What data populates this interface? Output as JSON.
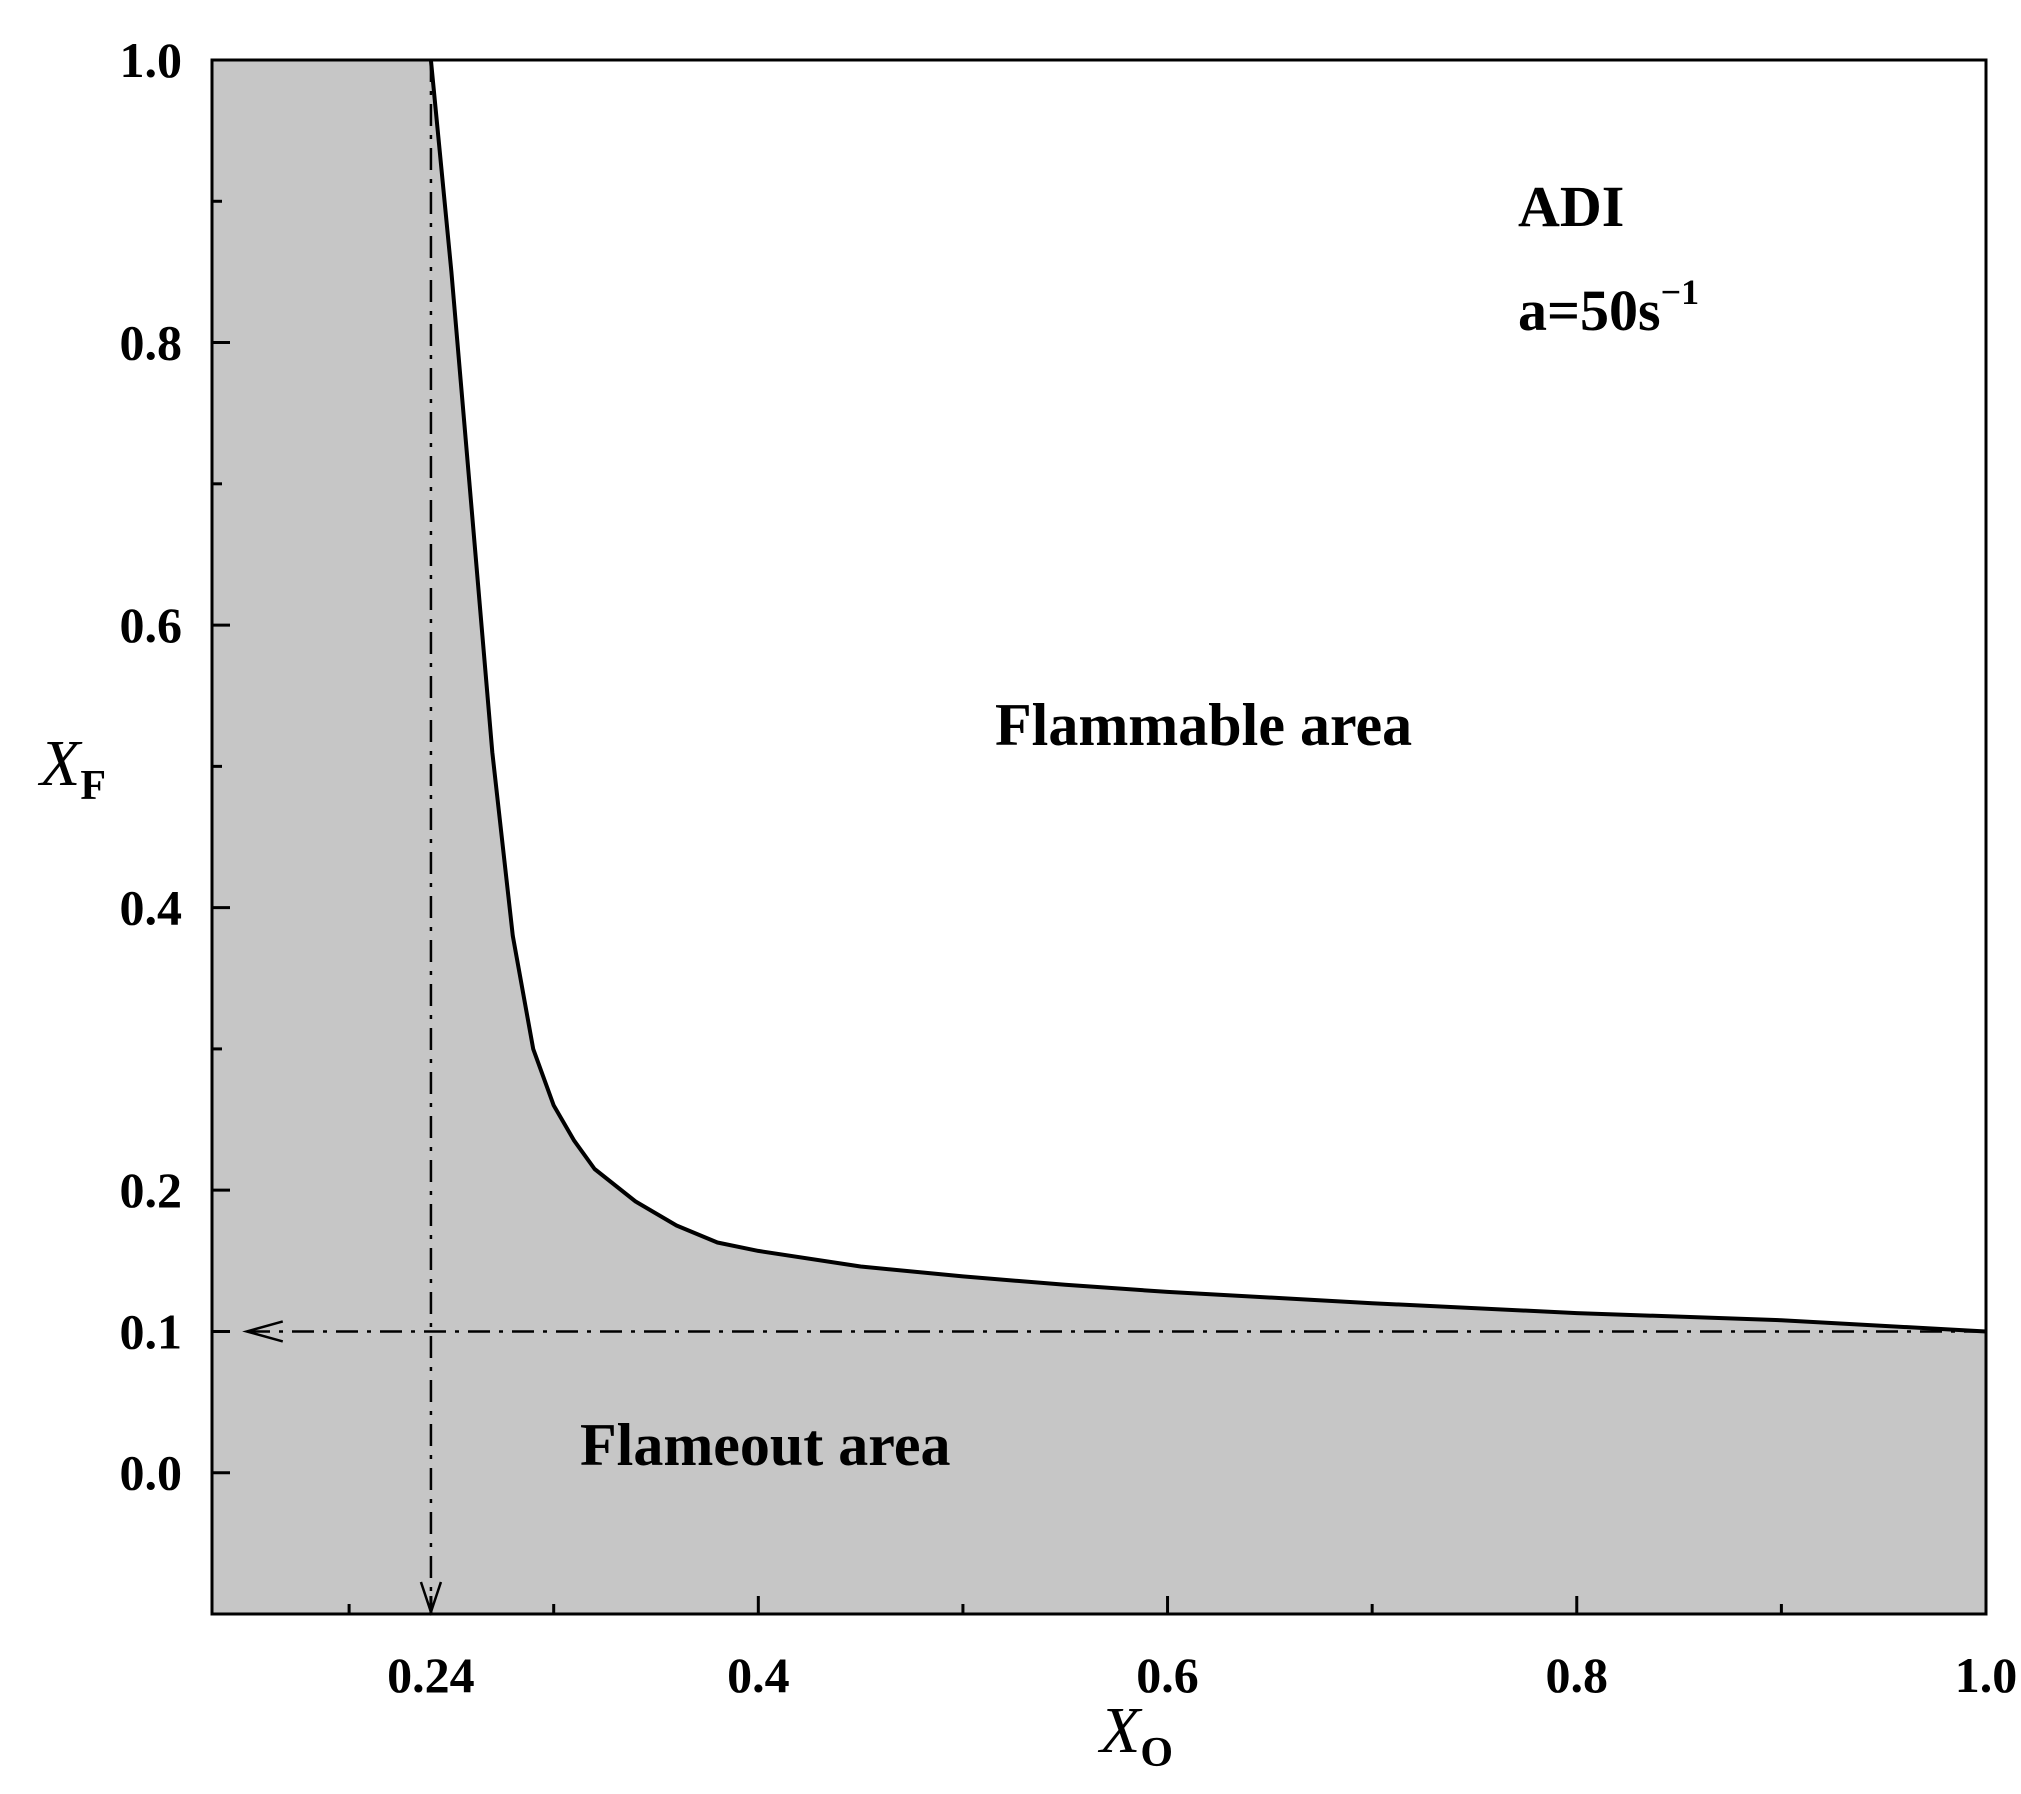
{
  "chart_data": {
    "type": "area",
    "x_label": {
      "var": "X",
      "sub": "O"
    },
    "y_label": {
      "var": "X",
      "sub": "F"
    },
    "xlim": [
      0.133,
      1.0
    ],
    "ylim": [
      -0.1,
      1.0
    ],
    "x_ticks": [
      {
        "value": 0.24,
        "label": "0.24",
        "color": "#ff0000"
      },
      {
        "value": 0.4,
        "label": "0.4",
        "color": "#000000"
      },
      {
        "value": 0.6,
        "label": "0.6",
        "color": "#000000"
      },
      {
        "value": 0.8,
        "label": "0.8",
        "color": "#000000"
      },
      {
        "value": 1.0,
        "label": "1.0",
        "color": "#000000"
      }
    ],
    "x_minor_ticks": [
      0.2,
      0.3,
      0.5,
      0.7,
      0.9
    ],
    "y_ticks": [
      {
        "value": 0.0,
        "label": "0.0",
        "color": "#000000"
      },
      {
        "value": 0.1,
        "label": "0.1",
        "color": "#ff0000"
      },
      {
        "value": 0.2,
        "label": "0.2",
        "color": "#000000"
      },
      {
        "value": 0.4,
        "label": "0.4",
        "color": "#000000"
      },
      {
        "value": 0.6,
        "label": "0.6",
        "color": "#000000"
      },
      {
        "value": 0.8,
        "label": "0.8",
        "color": "#000000"
      },
      {
        "value": 1.0,
        "label": "1.0",
        "color": "#000000"
      }
    ],
    "y_minor_ticks": [
      -0.1,
      0.3,
      0.5,
      0.7,
      0.9
    ],
    "boundary": {
      "x": [
        0.24,
        0.25,
        0.26,
        0.27,
        0.28,
        0.29,
        0.3,
        0.31,
        0.32,
        0.34,
        0.36,
        0.38,
        0.4,
        0.45,
        0.5,
        0.55,
        0.6,
        0.7,
        0.8,
        0.9,
        1.0
      ],
      "y": [
        1.0,
        0.85,
        0.68,
        0.51,
        0.38,
        0.3,
        0.26,
        0.235,
        0.215,
        0.192,
        0.175,
        0.163,
        0.157,
        0.146,
        0.139,
        0.133,
        0.128,
        0.12,
        0.113,
        0.108,
        0.1
      ]
    },
    "reference_lines": [
      {
        "orientation": "vertical",
        "x": 0.24,
        "from_y": 1.0,
        "to_y": -0.1,
        "style": "dash-dot",
        "arrow": "end"
      },
      {
        "orientation": "horizontal",
        "y": 0.1,
        "from_x": 1.0,
        "to_x": 0.15,
        "style": "dash-dot",
        "arrow": "end"
      }
    ],
    "colors": {
      "fill": "#c6c6c6",
      "line": "#000000",
      "highlight": "#ff0000"
    },
    "annotation_lines": [
      "ADI",
      "a=50s",
      "−1"
    ],
    "regions": {
      "upper": "Flammable area",
      "lower": "Flameout area"
    },
    "grid": false,
    "legend": "none"
  }
}
